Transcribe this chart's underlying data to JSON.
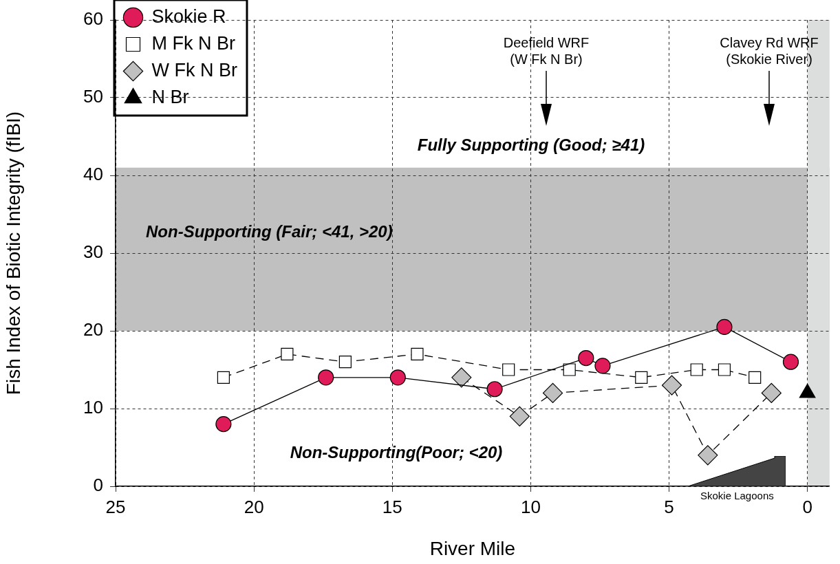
{
  "chart_data": {
    "type": "line",
    "xlabel": "River Mile",
    "ylabel": "Fish Index of Biotic Integrity (fIBI)",
    "xlim": [
      25,
      -0.8
    ],
    "xticks": [
      25,
      20,
      15,
      10,
      5,
      0
    ],
    "ylim": [
      0,
      60
    ],
    "yticks": [
      0,
      10,
      20,
      30,
      40,
      50,
      60
    ],
    "grid": true,
    "legend": "top left",
    "series": [
      {
        "name": "Skokie R",
        "color": "#e01b5a",
        "marker": "circle",
        "line_style": "solid",
        "x": [
          21.1,
          17.4,
          14.8,
          11.3,
          8.0,
          7.4,
          3.0,
          0.6
        ],
        "values": [
          8,
          14,
          14,
          12.5,
          16.5,
          15.5,
          20.5,
          16
        ]
      },
      {
        "name": "M Fk N Br",
        "color": "#ffffff",
        "marker": "square",
        "line_style": "dashed",
        "x": [
          21.1,
          18.8,
          16.7,
          14.1,
          10.8,
          8.6,
          6.0,
          4.0,
          3.0,
          1.9
        ],
        "values": [
          14,
          17,
          16,
          17,
          15,
          15,
          14,
          15,
          15,
          14
        ]
      },
      {
        "name": "W Fk N Br",
        "color": "#c0c0c0",
        "marker": "diamond",
        "line_style": "dashed",
        "x": [
          12.5,
          10.4,
          9.2,
          4.9,
          3.6,
          1.3
        ],
        "values": [
          14,
          9,
          12,
          13,
          4,
          12
        ]
      },
      {
        "name": "N Br",
        "color": "#000000",
        "marker": "triangle",
        "line_style": "dashed",
        "x": [
          0
        ],
        "values": [
          12
        ]
      }
    ],
    "bands": [
      {
        "axis": "y",
        "from": 20,
        "to": 41,
        "label": "Non-Supporting (Fair; <41, >20)",
        "color": "#c0c0c0"
      },
      {
        "axis": "x",
        "from": 0,
        "to": -0.8,
        "color": "#dcdedd"
      }
    ],
    "annotations": [
      "Deefield WRF\n(W Fk N Br)",
      "Clavey Rd WRF\n(Skokie River)",
      "Fully Supporting (Good; ≥41)",
      "Non-Supporting(Poor; <20)",
      "Skokie Lagoons"
    ]
  }
}
